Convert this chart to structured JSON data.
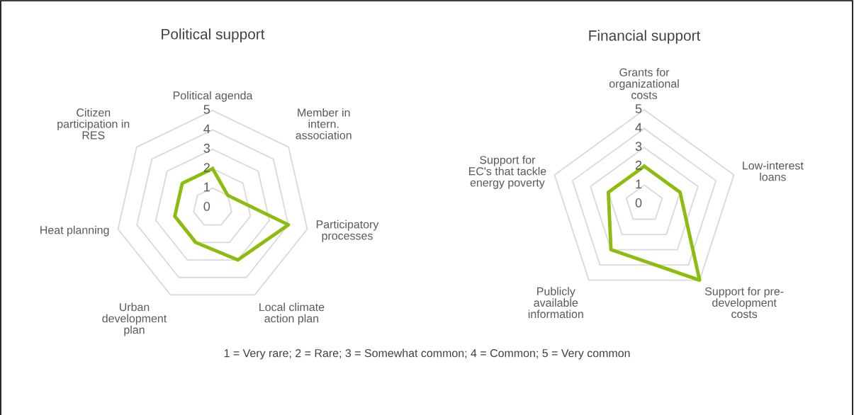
{
  "chart_data": [
    {
      "type": "radar",
      "title": "Political support",
      "categories": [
        "Political agenda",
        "Member in\nintern.\nassociation",
        "Participatory\nprocesses",
        "Local climate\naction plan",
        "Urban\ndevelopment\nplan",
        "Heat planning",
        "Citizen\nparticipation in\nRES"
      ],
      "series": [
        {
          "color": "#8cbd0e",
          "values": [
            2,
            1,
            4,
            3,
            2,
            2,
            2
          ]
        }
      ],
      "ylim": [
        0,
        5
      ],
      "yticks": [
        0,
        1,
        2,
        3,
        4,
        5
      ],
      "grid": true,
      "legend": false,
      "annotations": [
        "1 = Very rare; 2 = Rare; 3 = Somewhat common; 4 = Common; 5 = Very common"
      ]
    },
    {
      "type": "radar",
      "title": "Financial support",
      "categories": [
        "Grants for\norganizational\ncosts",
        "Low-interest\nloans",
        "Support for pre-\ndevelopment\ncosts",
        "Publicly\navailable\ninformation",
        "Support for\nEC's that tackle\nenergy poverty"
      ],
      "series": [
        {
          "color": "#8cbd0e",
          "values": [
            2,
            2,
            5,
            3,
            2
          ]
        }
      ],
      "ylim": [
        0,
        5
      ],
      "yticks": [
        0,
        1,
        2,
        3,
        4,
        5
      ],
      "grid": true,
      "legend": false
    }
  ]
}
